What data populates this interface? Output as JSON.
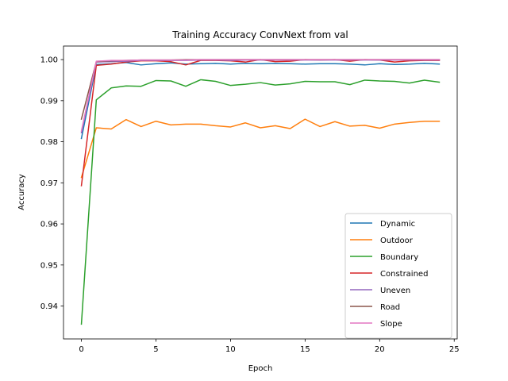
{
  "chart_data": {
    "type": "line",
    "title": "Training Accuracy ConvNext from val",
    "xlabel": "Epoch",
    "ylabel": "Accuracy",
    "xlim": [
      -1.2,
      25.2
    ],
    "ylim": [
      0.932,
      1.0033
    ],
    "xticks": [
      0,
      5,
      10,
      15,
      20,
      25
    ],
    "yticks": [
      0.94,
      0.95,
      0.96,
      0.97,
      0.98,
      0.99,
      1.0
    ],
    "ytick_labels": [
      "0.94",
      "0.95",
      "0.96",
      "0.97",
      "0.98",
      "0.99",
      "1.00"
    ],
    "grid": false,
    "legend_position": "lower-right",
    "x": [
      0,
      1,
      2,
      3,
      4,
      5,
      6,
      7,
      8,
      9,
      10,
      11,
      12,
      13,
      14,
      15,
      16,
      17,
      18,
      19,
      20,
      21,
      22,
      23,
      24
    ],
    "series": [
      {
        "name": "Dynamic",
        "color": "#1f77b4",
        "values": [
          0.9808,
          0.9988,
          0.999,
          0.9993,
          0.9987,
          0.999,
          0.9992,
          0.9989,
          0.999,
          0.9991,
          0.9989,
          0.9991,
          0.999,
          0.9991,
          0.999,
          0.9989,
          0.999,
          0.999,
          0.9989,
          0.9987,
          0.999,
          0.9988,
          0.9989,
          0.9991,
          0.9989
        ]
      },
      {
        "name": "Outdoor",
        "color": "#ff7f0e",
        "values": [
          0.9713,
          0.9834,
          0.9831,
          0.9854,
          0.9837,
          0.985,
          0.9841,
          0.9843,
          0.9843,
          0.9839,
          0.9836,
          0.9846,
          0.9834,
          0.9839,
          0.9832,
          0.9855,
          0.9837,
          0.9849,
          0.9838,
          0.984,
          0.9833,
          0.9843,
          0.9847,
          0.985,
          0.985
        ]
      },
      {
        "name": "Boundary",
        "color": "#2ca02c",
        "values": [
          0.9356,
          0.9902,
          0.9931,
          0.9936,
          0.9935,
          0.9949,
          0.9948,
          0.9935,
          0.9951,
          0.9947,
          0.9937,
          0.994,
          0.9944,
          0.9938,
          0.9941,
          0.9947,
          0.9946,
          0.9946,
          0.9939,
          0.995,
          0.9948,
          0.9947,
          0.9943,
          0.995,
          0.9945
        ]
      },
      {
        "name": "Constrained",
        "color": "#d62728",
        "values": [
          0.9693,
          0.9986,
          0.9989,
          0.9994,
          0.9997,
          0.9997,
          0.9995,
          0.9987,
          0.9998,
          0.9998,
          0.9997,
          0.9994,
          1.0,
          0.9995,
          0.9996,
          1.0,
          0.9999,
          1.0,
          0.9996,
          1.0,
          0.9999,
          0.9994,
          0.9997,
          0.9998,
          0.9998
        ]
      },
      {
        "name": "Uneven",
        "color": "#9467bd",
        "values": [
          0.9822,
          0.9994,
          0.9995,
          0.9996,
          0.9998,
          0.9998,
          0.9998,
          0.9998,
          0.9999,
          0.9999,
          0.9998,
          0.9999,
          0.9999,
          0.9999,
          0.9999,
          0.9999,
          0.9999,
          0.9999,
          0.9999,
          0.9999,
          0.9999,
          0.9999,
          0.9999,
          0.9999,
          0.9999
        ]
      },
      {
        "name": "Road",
        "color": "#8c564b",
        "values": [
          0.9855,
          0.9995,
          0.9997,
          0.9998,
          0.9999,
          0.9999,
          0.9999,
          1.0,
          1.0,
          1.0,
          1.0,
          1.0,
          1.0,
          1.0,
          1.0,
          1.0,
          1.0,
          1.0,
          1.0,
          1.0,
          1.0,
          1.0,
          1.0,
          1.0,
          1.0
        ]
      },
      {
        "name": "Slope",
        "color": "#e377c2",
        "values": [
          0.9826,
          0.9996,
          0.9998,
          0.9998,
          0.9999,
          0.9999,
          0.9999,
          0.9999,
          1.0,
          1.0,
          1.0,
          1.0,
          1.0,
          1.0,
          1.0,
          1.0,
          1.0,
          1.0,
          1.0,
          1.0,
          1.0,
          1.0,
          1.0,
          1.0,
          1.0
        ]
      }
    ]
  }
}
